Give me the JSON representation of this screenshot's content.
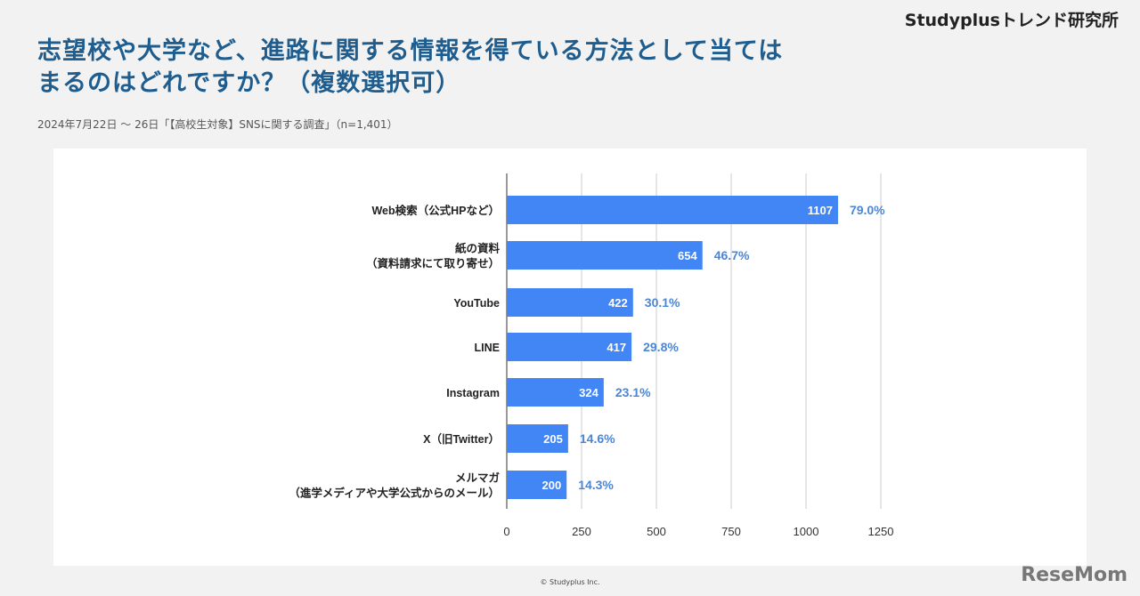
{
  "header": {
    "title": "志望校や大学など、進路に関する情報を得ている方法として当てはまるのはどれですか？（複数選択可）",
    "subtitle": "2024年7月22日 ～ 26日「【高校生対象】SNSに関する調査」（n=1,401）",
    "brand": "Studyplusトレンド研究所"
  },
  "footer": {
    "copyright": "© Studyplus Inc.",
    "logo": "ReseMom"
  },
  "chart_data": {
    "type": "bar",
    "orientation": "horizontal",
    "categories": [
      [
        "Web検索（公式HPなど）"
      ],
      [
        "紙の資料",
        "（資料請求にて取り寄せ）"
      ],
      [
        "YouTube"
      ],
      [
        "LINE"
      ],
      [
        "Instagram"
      ],
      [
        "X（旧Twitter）"
      ],
      [
        "メルマガ",
        "（進学メディアや大学公式からのメール）"
      ]
    ],
    "values": [
      1107,
      654,
      422,
      417,
      324,
      205,
      200
    ],
    "percent_labels": [
      "79.0%",
      "46.7%",
      "30.1%",
      "29.8%",
      "23.1%",
      "14.6%",
      "14.3%"
    ],
    "xlim": [
      0,
      1250
    ],
    "xticks": [
      0,
      250,
      500,
      750,
      1000,
      1250
    ],
    "grid": true,
    "colors": {
      "bar": "#4285f4",
      "percent": "#4a86d8"
    }
  }
}
